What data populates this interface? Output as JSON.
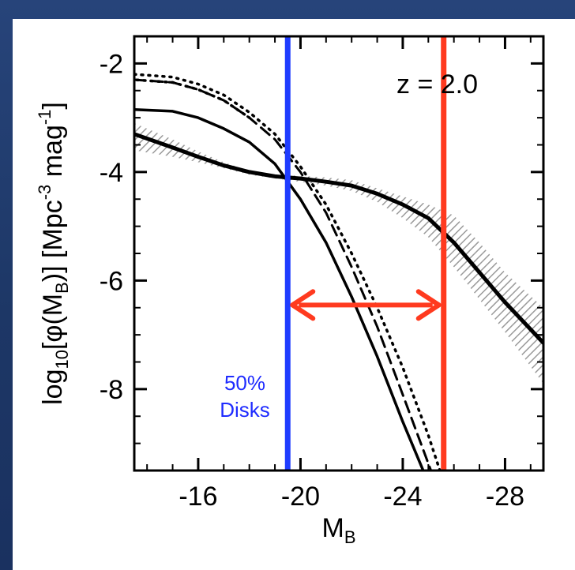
{
  "chart_data": {
    "type": "line",
    "title": "",
    "xlabel": "M",
    "xlabel_sub": "B",
    "ylabel_parts": [
      "log",
      "10",
      "[φ(M",
      "B",
      ")]  [Mpc",
      "-3",
      " mag",
      "-1",
      "]"
    ],
    "xlim": [
      -13.5,
      -29.5
    ],
    "ylim": [
      -9.5,
      -1.5
    ],
    "x_ticks": [
      -16,
      -20,
      -24,
      -28
    ],
    "x_tick_labels": [
      "-16",
      "-20",
      "-24",
      "-28"
    ],
    "y_ticks": [
      -2,
      -4,
      -6,
      -8
    ],
    "y_tick_labels": [
      "-2",
      "-4",
      "-6",
      "-8"
    ],
    "annotation": "z = 2.0",
    "disk_label_line1": "50%",
    "disk_label_line2": "Disks",
    "vertical_lines": [
      {
        "x": -19.5,
        "color": "#1f3cff"
      },
      {
        "x": -25.6,
        "color": "#ff3a1f"
      }
    ],
    "arrow": {
      "x_start": -19.5,
      "x_end": -25.6,
      "y": -6.45,
      "color": "#ff3a1f"
    },
    "band": {
      "x": [
        -13.5,
        -15,
        -16,
        -17,
        -18,
        -19,
        -20,
        -21,
        -22,
        -23,
        -24,
        -25,
        -26,
        -27,
        -28,
        -29.5
      ],
      "upper": [
        -3.1,
        -3.4,
        -3.62,
        -3.82,
        -3.98,
        -4.05,
        -4.07,
        -4.1,
        -4.15,
        -4.3,
        -4.45,
        -4.6,
        -4.8,
        -5.3,
        -5.85,
        -6.5
      ],
      "lower": [
        -3.6,
        -3.72,
        -3.82,
        -3.93,
        -4.05,
        -4.12,
        -4.18,
        -4.25,
        -4.35,
        -4.55,
        -4.85,
        -5.2,
        -5.75,
        -6.35,
        -6.95,
        -7.9
      ]
    },
    "series": [
      {
        "style": "thick-solid",
        "x": [
          -13.5,
          -15,
          -16,
          -17,
          -18,
          -19,
          -20,
          -21,
          -22,
          -23,
          -24,
          -25,
          -26,
          -27,
          -28,
          -29.5
        ],
        "y": [
          -3.3,
          -3.55,
          -3.72,
          -3.88,
          -4.0,
          -4.08,
          -4.12,
          -4.18,
          -4.25,
          -4.4,
          -4.6,
          -4.85,
          -5.3,
          -5.85,
          -6.4,
          -7.15
        ]
      },
      {
        "style": "solid",
        "x": [
          -13.5,
          -15,
          -16,
          -17,
          -18,
          -19,
          -20,
          -21,
          -22,
          -23,
          -24,
          -24.8
        ],
        "y": [
          -2.85,
          -2.88,
          -3.0,
          -3.2,
          -3.45,
          -3.85,
          -4.5,
          -5.3,
          -6.3,
          -7.4,
          -8.6,
          -9.5
        ]
      },
      {
        "style": "dashed",
        "x": [
          -13.5,
          -15,
          -16,
          -17,
          -18,
          -19,
          -20,
          -21,
          -22,
          -23,
          -24,
          -25.1
        ],
        "y": [
          -2.3,
          -2.35,
          -2.48,
          -2.68,
          -3.0,
          -3.4,
          -4.0,
          -4.75,
          -5.75,
          -6.85,
          -8.1,
          -9.5
        ]
      },
      {
        "style": "dotted",
        "x": [
          -13.5,
          -15,
          -16,
          -17,
          -18,
          -19,
          -20,
          -21,
          -22,
          -23,
          -24,
          -25,
          -25.45
        ],
        "y": [
          -2.2,
          -2.25,
          -2.38,
          -2.58,
          -2.9,
          -3.3,
          -3.9,
          -4.6,
          -5.5,
          -6.5,
          -7.6,
          -8.85,
          -9.5
        ]
      }
    ]
  }
}
